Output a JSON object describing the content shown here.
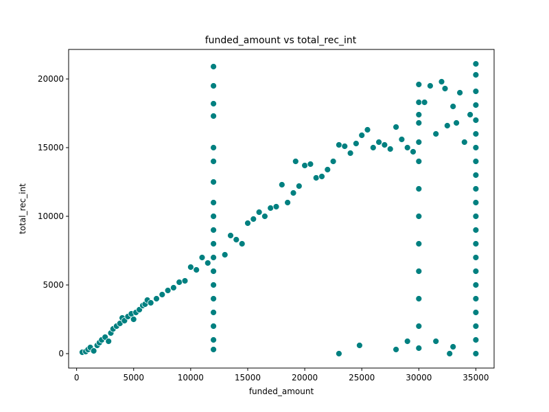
{
  "chart_data": {
    "type": "scatter",
    "title": "funded_amount vs total_rec_int",
    "xlabel": "funded_amount",
    "ylabel": "total_rec_int",
    "xlim": [
      -700,
      36600
    ],
    "ylim": [
      -1050,
      22150
    ],
    "xticks": [
      0,
      5000,
      10000,
      15000,
      20000,
      25000,
      30000,
      35000
    ],
    "yticks": [
      0,
      5000,
      10000,
      15000,
      20000
    ],
    "xtick_labels": [
      "0",
      "5000",
      "10000",
      "15000",
      "20000",
      "25000",
      "30000",
      "35000"
    ],
    "ytick_labels": [
      "0",
      "5000",
      "10000",
      "15000",
      "20000"
    ],
    "marker_color": "#008080",
    "marker_edge_color": "#ffffff",
    "grid": false,
    "legend": "none",
    "points": [
      [
        500,
        100
      ],
      [
        800,
        150
      ],
      [
        1000,
        300
      ],
      [
        1200,
        450
      ],
      [
        1500,
        200
      ],
      [
        1800,
        600
      ],
      [
        2000,
        800
      ],
      [
        2200,
        1000
      ],
      [
        2500,
        1200
      ],
      [
        2800,
        900
      ],
      [
        3000,
        1500
      ],
      [
        3200,
        1800
      ],
      [
        3500,
        2000
      ],
      [
        3800,
        2200
      ],
      [
        4000,
        2600
      ],
      [
        4200,
        2400
      ],
      [
        4500,
        2700
      ],
      [
        4800,
        2900
      ],
      [
        5000,
        2500
      ],
      [
        5200,
        3000
      ],
      [
        5500,
        3200
      ],
      [
        5800,
        3500
      ],
      [
        6000,
        3600
      ],
      [
        6200,
        3900
      ],
      [
        6500,
        3700
      ],
      [
        7000,
        4000
      ],
      [
        7500,
        4300
      ],
      [
        8000,
        4600
      ],
      [
        8500,
        4800
      ],
      [
        9000,
        5200
      ],
      [
        9500,
        5300
      ],
      [
        10000,
        6300
      ],
      [
        10500,
        6100
      ],
      [
        11000,
        7000
      ],
      [
        11500,
        6600
      ],
      [
        12000,
        20900
      ],
      [
        12000,
        19500
      ],
      [
        12000,
        18200
      ],
      [
        12000,
        17300
      ],
      [
        12000,
        15000
      ],
      [
        12000,
        14000
      ],
      [
        12000,
        12500
      ],
      [
        12000,
        11000
      ],
      [
        12000,
        10000
      ],
      [
        12000,
        9000
      ],
      [
        12000,
        8000
      ],
      [
        12000,
        7000
      ],
      [
        12000,
        6000
      ],
      [
        12000,
        5000
      ],
      [
        12000,
        4000
      ],
      [
        12000,
        3000
      ],
      [
        12000,
        2000
      ],
      [
        12000,
        1000
      ],
      [
        12000,
        300
      ],
      [
        13000,
        7200
      ],
      [
        13500,
        8600
      ],
      [
        14000,
        8300
      ],
      [
        14500,
        8000
      ],
      [
        15000,
        9500
      ],
      [
        15500,
        9800
      ],
      [
        16000,
        10300
      ],
      [
        16500,
        10000
      ],
      [
        17000,
        10600
      ],
      [
        17500,
        10700
      ],
      [
        18000,
        12300
      ],
      [
        18500,
        11000
      ],
      [
        19000,
        11700
      ],
      [
        19200,
        14000
      ],
      [
        19500,
        12200
      ],
      [
        20000,
        13700
      ],
      [
        20500,
        13800
      ],
      [
        21000,
        12800
      ],
      [
        21500,
        12900
      ],
      [
        22000,
        13400
      ],
      [
        22500,
        14000
      ],
      [
        23000,
        15200
      ],
      [
        23500,
        15100
      ],
      [
        24000,
        14600
      ],
      [
        24500,
        15300
      ],
      [
        25000,
        15900
      ],
      [
        25500,
        16300
      ],
      [
        26000,
        15000
      ],
      [
        26500,
        15400
      ],
      [
        27000,
        15200
      ],
      [
        27500,
        14900
      ],
      [
        28000,
        16500
      ],
      [
        28500,
        15600
      ],
      [
        29000,
        15000
      ],
      [
        29500,
        14700
      ],
      [
        30000,
        19600
      ],
      [
        30000,
        18300
      ],
      [
        30000,
        17400
      ],
      [
        30000,
        16800
      ],
      [
        30000,
        15400
      ],
      [
        30000,
        14000
      ],
      [
        30000,
        12000
      ],
      [
        30000,
        10000
      ],
      [
        30000,
        8000
      ],
      [
        30000,
        6000
      ],
      [
        30000,
        4000
      ],
      [
        30000,
        2000
      ],
      [
        30000,
        400
      ],
      [
        30500,
        18300
      ],
      [
        31000,
        19500
      ],
      [
        31500,
        16000
      ],
      [
        32000,
        19800
      ],
      [
        32300,
        19300
      ],
      [
        32500,
        16600
      ],
      [
        33000,
        18000
      ],
      [
        33300,
        16800
      ],
      [
        33600,
        19000
      ],
      [
        34000,
        15400
      ],
      [
        34500,
        17400
      ],
      [
        35000,
        21100
      ],
      [
        35000,
        20300
      ],
      [
        35000,
        19100
      ],
      [
        35000,
        18100
      ],
      [
        35000,
        17000
      ],
      [
        35000,
        16000
      ],
      [
        35000,
        15000
      ],
      [
        35000,
        14000
      ],
      [
        35000,
        13000
      ],
      [
        35000,
        12000
      ],
      [
        35000,
        11000
      ],
      [
        35000,
        10000
      ],
      [
        35000,
        9000
      ],
      [
        35000,
        8000
      ],
      [
        35000,
        7000
      ],
      [
        35000,
        6000
      ],
      [
        35000,
        5000
      ],
      [
        35000,
        4000
      ],
      [
        35000,
        3000
      ],
      [
        35000,
        2000
      ],
      [
        35000,
        1000
      ],
      [
        35000,
        0
      ],
      [
        32700,
        0
      ],
      [
        23000,
        0
      ],
      [
        33000,
        500
      ],
      [
        28000,
        300
      ],
      [
        29000,
        900
      ],
      [
        31500,
        900
      ],
      [
        24800,
        600
      ]
    ]
  }
}
